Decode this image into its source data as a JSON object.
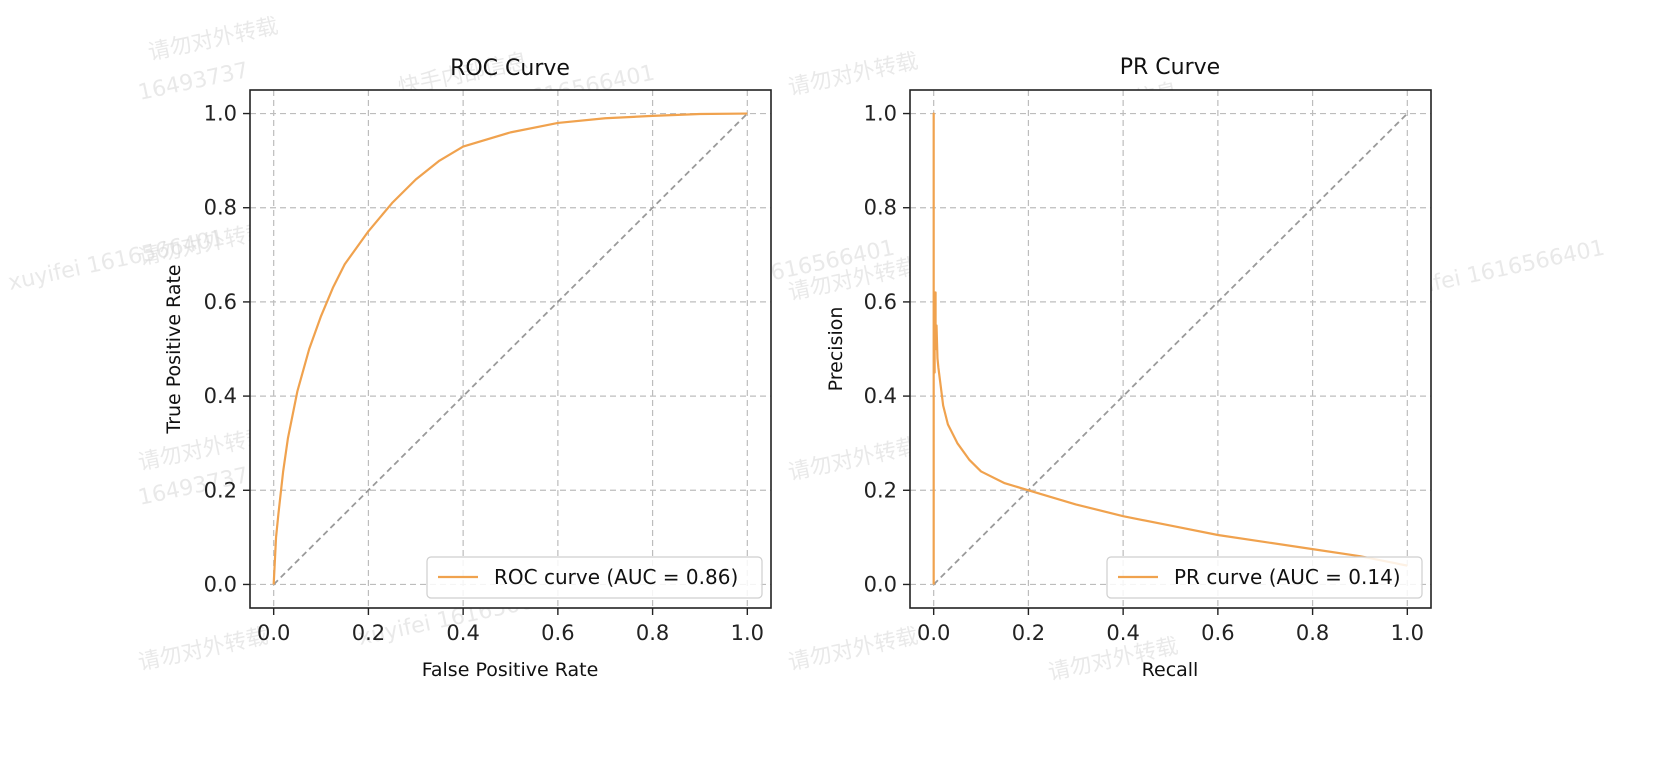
{
  "colors": {
    "curve": "#f0a24e",
    "diagonal": "#9a9a9a",
    "grid": "#bdbdbd",
    "axes": "#222222",
    "watermark": "#d8d8d8"
  },
  "chart_data": [
    {
      "type": "line",
      "title": "ROC Curve",
      "xlabel": "False Positive Rate",
      "ylabel": "True Positive Rate",
      "xlim": [
        -0.05,
        1.05
      ],
      "ylim": [
        -0.05,
        1.05
      ],
      "xticks": [
        0.0,
        0.2,
        0.4,
        0.6,
        0.8,
        1.0
      ],
      "yticks": [
        0.0,
        0.2,
        0.4,
        0.6,
        0.8,
        1.0
      ],
      "xtick_labels": [
        "0.0",
        "0.2",
        "0.4",
        "0.6",
        "0.8",
        "1.0"
      ],
      "ytick_labels": [
        "0.0",
        "0.2",
        "0.4",
        "0.6",
        "0.8",
        "1.0"
      ],
      "grid": true,
      "legend_position": "lower right",
      "series": [
        {
          "name": "ROC curve (AUC = 0.86)",
          "style": "solid",
          "x": [
            0.0,
            0.005,
            0.01,
            0.02,
            0.03,
            0.05,
            0.075,
            0.1,
            0.125,
            0.15,
            0.2,
            0.25,
            0.3,
            0.35,
            0.4,
            0.5,
            0.6,
            0.7,
            0.8,
            0.9,
            1.0
          ],
          "y": [
            0.0,
            0.1,
            0.15,
            0.24,
            0.31,
            0.41,
            0.5,
            0.57,
            0.63,
            0.68,
            0.75,
            0.81,
            0.86,
            0.9,
            0.93,
            0.96,
            0.98,
            0.99,
            0.995,
            0.999,
            1.0
          ]
        },
        {
          "name": "",
          "style": "dashed",
          "x": [
            0.0,
            1.0
          ],
          "y": [
            0.0,
            1.0
          ]
        }
      ]
    },
    {
      "type": "line",
      "title": "PR Curve",
      "xlabel": "Recall",
      "ylabel": "Precision",
      "xlim": [
        -0.05,
        1.05
      ],
      "ylim": [
        -0.05,
        1.05
      ],
      "xticks": [
        0.0,
        0.2,
        0.4,
        0.6,
        0.8,
        1.0
      ],
      "yticks": [
        0.0,
        0.2,
        0.4,
        0.6,
        0.8,
        1.0
      ],
      "xtick_labels": [
        "0.0",
        "0.2",
        "0.4",
        "0.6",
        "0.8",
        "1.0"
      ],
      "ytick_labels": [
        "0.0",
        "0.2",
        "0.4",
        "0.6",
        "0.8",
        "1.0"
      ],
      "grid": true,
      "legend_position": "lower right",
      "series": [
        {
          "name": "PR curve (AUC = 0.14)",
          "style": "solid",
          "x": [
            0.0,
            0.0,
            0.0,
            0.002,
            0.002,
            0.004,
            0.004,
            0.006,
            0.006,
            0.008,
            0.01,
            0.015,
            0.02,
            0.03,
            0.05,
            0.075,
            0.1,
            0.15,
            0.2,
            0.3,
            0.4,
            0.5,
            0.6,
            0.7,
            0.8,
            0.9,
            1.0
          ],
          "y": [
            0.0,
            1.0,
            0.45,
            0.45,
            0.62,
            0.62,
            0.5,
            0.5,
            0.55,
            0.48,
            0.46,
            0.42,
            0.38,
            0.34,
            0.3,
            0.265,
            0.24,
            0.215,
            0.2,
            0.17,
            0.145,
            0.125,
            0.105,
            0.09,
            0.075,
            0.06,
            0.04
          ]
        },
        {
          "name": "",
          "style": "dashed",
          "x": [
            0.0,
            1.0
          ],
          "y": [
            0.0,
            1.0
          ]
        }
      ]
    }
  ],
  "watermarks": {
    "lines": [
      "请勿对外转载",
      "16493737",
      "快手内部信息",
      "xuyifei 1616566401"
    ]
  }
}
